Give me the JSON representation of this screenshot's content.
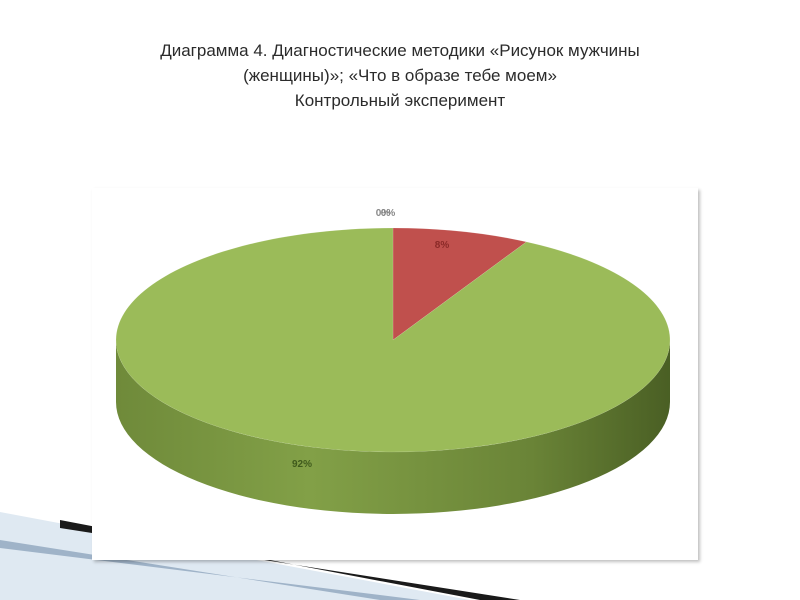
{
  "title": {
    "line1": "Диаграмма 4. Диагностические методики  «Рисунок мужчины",
    "line2": "(женщины)»; «Что в образе тебе моем»",
    "line3": "Контрольный  эксперимент"
  },
  "chart_data": {
    "type": "pie",
    "title": "Диаграмма 4. Диагностические методики «Рисунок мужчины (женщины)»; «Что в образе тебе моем» Контрольный эксперимент",
    "style": "3d",
    "slices": [
      {
        "value": 0,
        "label": "0%",
        "color": "#4f81bd"
      },
      {
        "value": 0,
        "label": "0%",
        "color": "#8064a2"
      },
      {
        "value": 8,
        "label": "8%",
        "color": "#c0504d"
      },
      {
        "value": 92,
        "label": "92%",
        "color": "#9bbb59"
      }
    ],
    "legend": "none"
  }
}
